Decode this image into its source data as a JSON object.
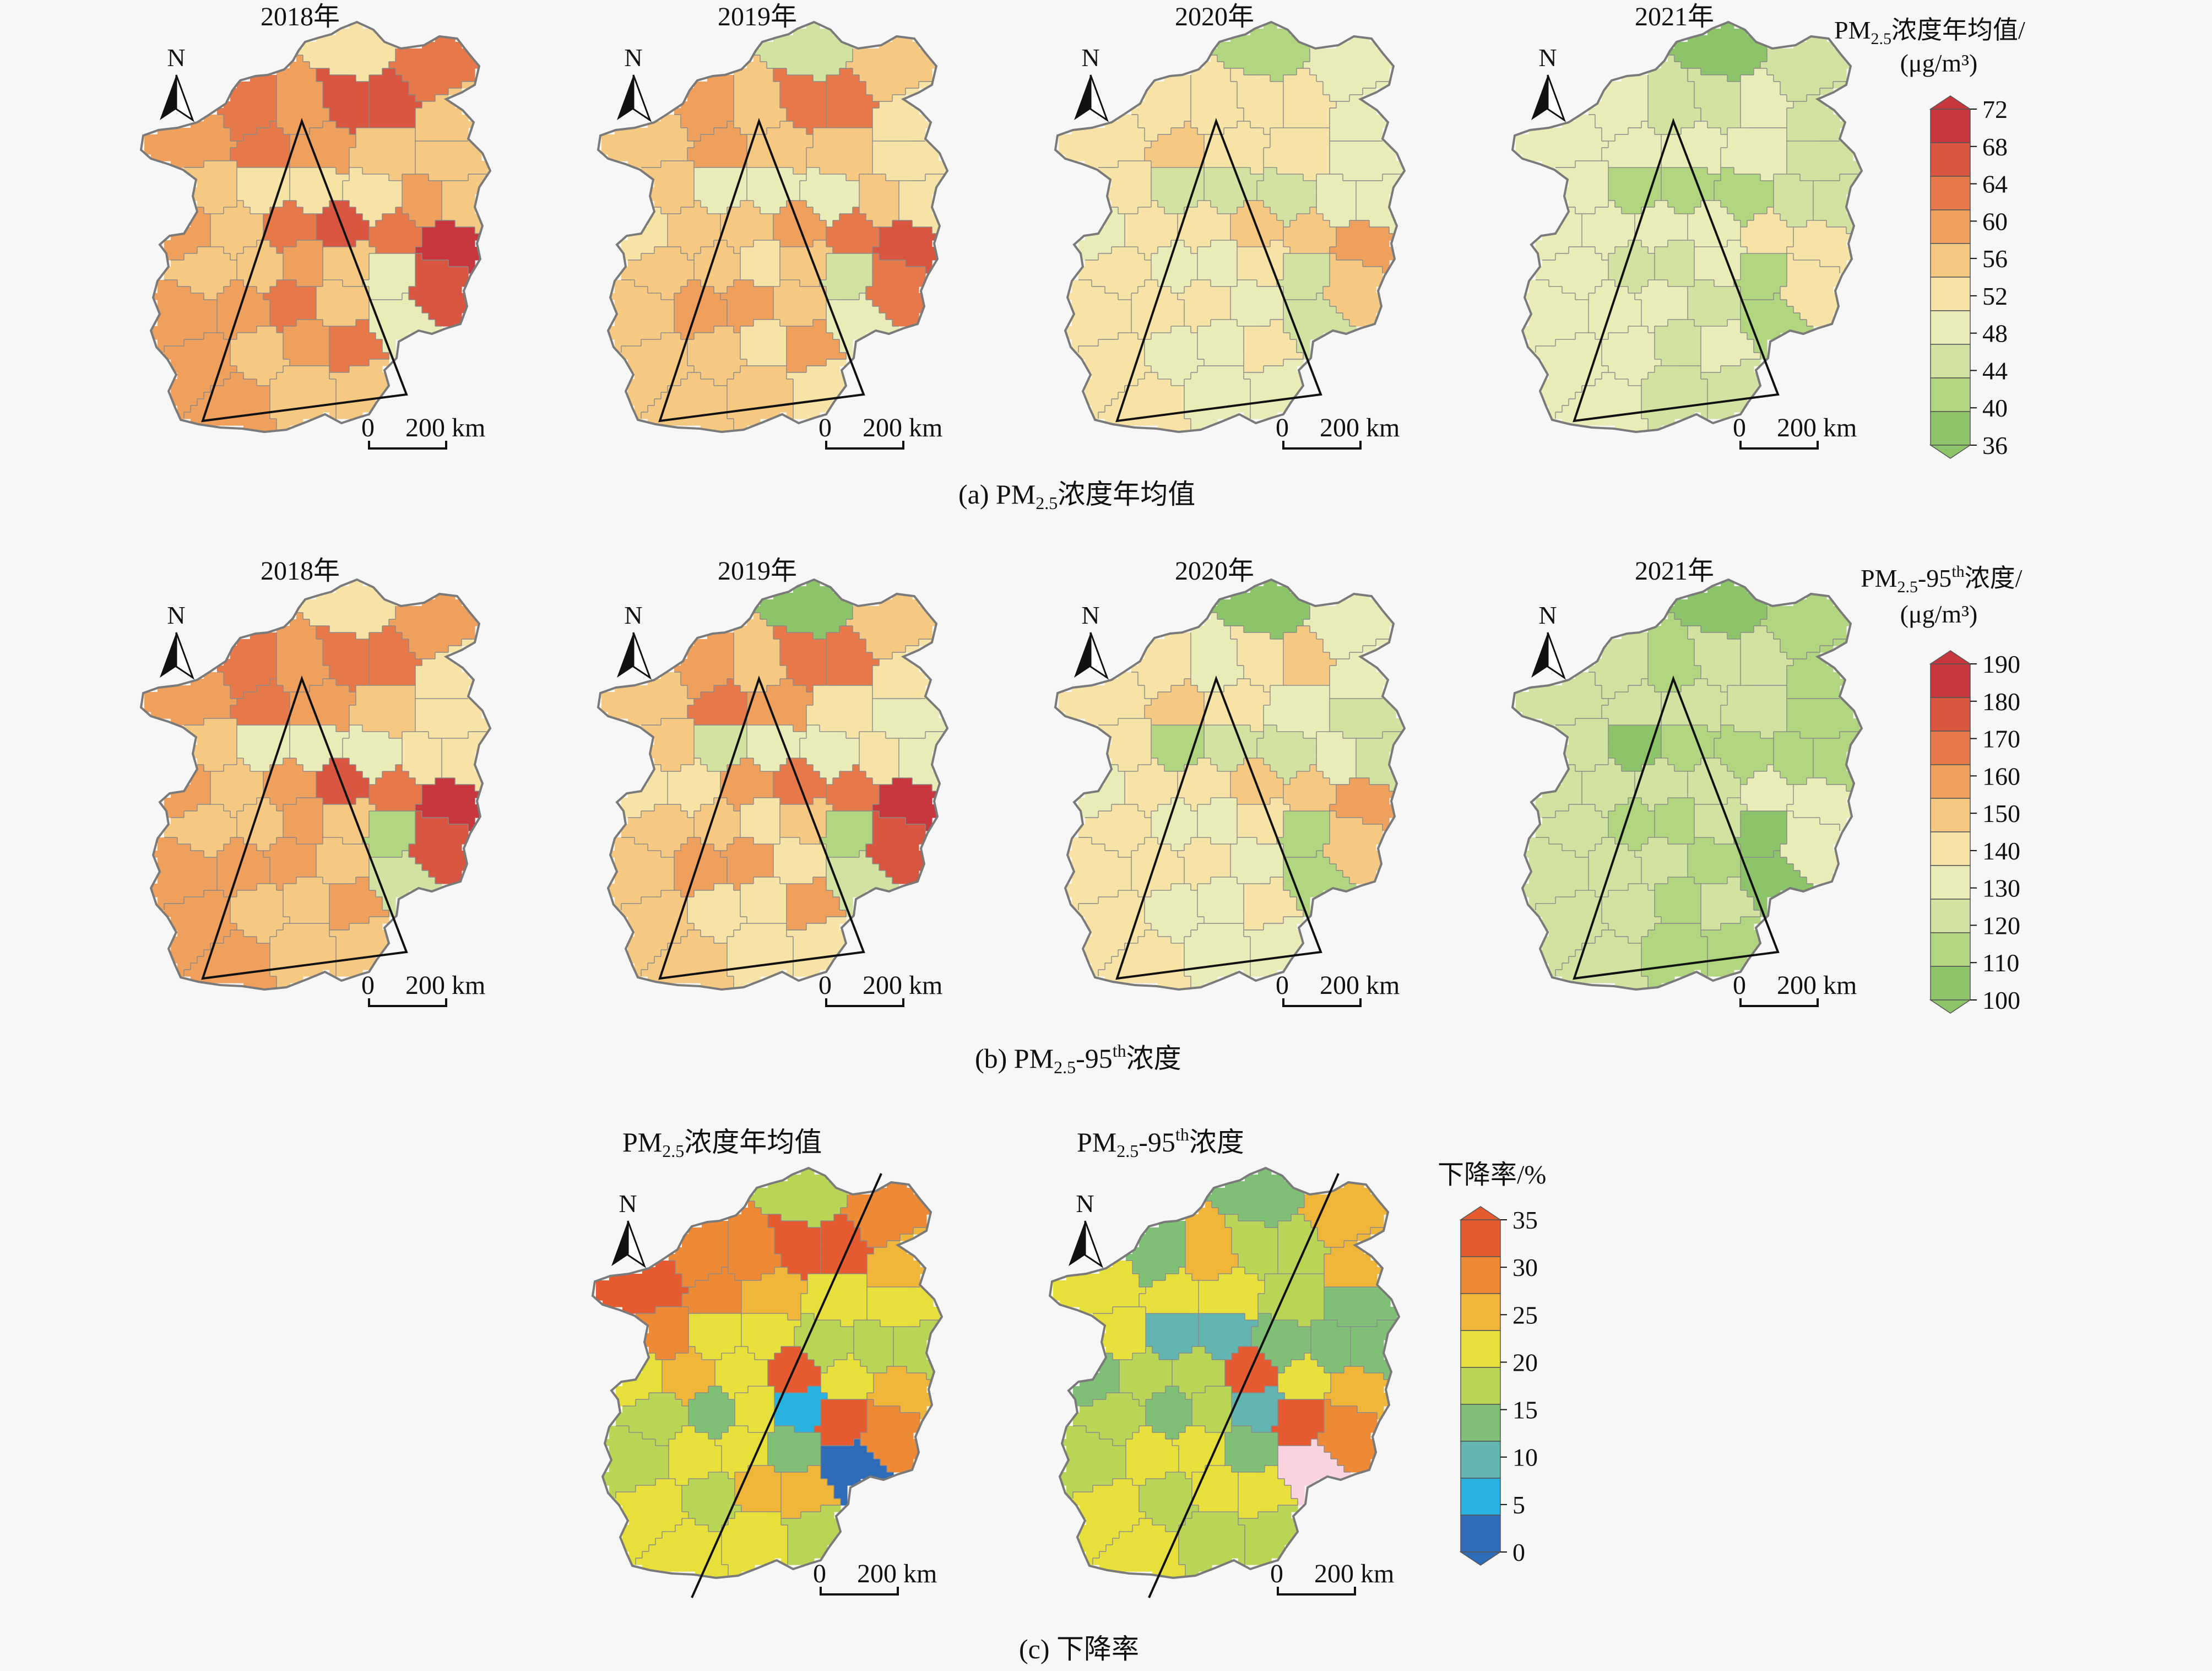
{
  "panels": {
    "a": {
      "caption_prefix": "(a) PM",
      "caption_sub": "2.5",
      "caption_suffix": "浓度年均值",
      "years": [
        "2018年",
        "2019年",
        "2020年",
        "2021年"
      ],
      "legend_title_prefix": "PM",
      "legend_title_sub": "2.5",
      "legend_title_suffix": "浓度年均值/",
      "legend_unit": "(μg/m³)",
      "legend_ticks": [
        "72",
        "68",
        "64",
        "60",
        "56",
        "52",
        "48",
        "44",
        "40",
        "36"
      ]
    },
    "b": {
      "caption_prefix": "(b) PM",
      "caption_sub": "2.5",
      "caption_mid": "-95",
      "caption_sup": "th",
      "caption_suffix": "浓度",
      "years": [
        "2018年",
        "2019年",
        "2020年",
        "2021年"
      ],
      "legend_title_prefix": "PM",
      "legend_title_sub": "2.5",
      "legend_title_mid": "-95",
      "legend_title_sup": "th",
      "legend_title_suffix": "浓度/",
      "legend_unit": "(μg/m³)",
      "legend_ticks": [
        "190",
        "180",
        "170",
        "160",
        "150",
        "140",
        "130",
        "120",
        "110",
        "100"
      ]
    },
    "c": {
      "caption": "(c) 下降率",
      "map1_title_prefix": "PM",
      "map1_title_sub": "2.5",
      "map1_title_suffix": "浓度年均值",
      "map2_title_prefix": "PM",
      "map2_title_sub": "2.5",
      "map2_title_mid": "-95",
      "map2_title_sup": "th",
      "map2_title_suffix": "浓度",
      "legend_title": "下降率/%",
      "legend_ticks": [
        "35",
        "30",
        "25",
        "20",
        "15",
        "10",
        "5",
        "0"
      ]
    }
  },
  "north_label": "N",
  "scale_bar": {
    "zero": "0",
    "distance": "200 km"
  },
  "colors": {
    "a_ramp": [
      "#c8373d",
      "#d8553f",
      "#e6784a",
      "#eea05c",
      "#f6c982",
      "#f7e3a6",
      "#eaecb8",
      "#d2e2a0",
      "#b2d57f",
      "#8dc46a"
    ],
    "b_ramp": [
      "#c8373d",
      "#d8553f",
      "#e6784a",
      "#eea05c",
      "#f6c982",
      "#f7e3a6",
      "#eaecb8",
      "#d2e2a0",
      "#b2d57f",
      "#8dc46a"
    ],
    "c_ramp": [
      "#e55a2e",
      "#ee8a35",
      "#f0b63a",
      "#e7df3b",
      "#b9d556",
      "#7fbf76",
      "#62b5b1",
      "#27b2df",
      "#2e6cb8"
    ],
    "c_special": "#f9d3dd",
    "region_border": "#8a8a8a",
    "map_outline": "#7a7a7a",
    "line": "#111111"
  },
  "maps": {
    "a": [
      {
        "year": "2018年",
        "region_classes": [
          5,
          2,
          4,
          1,
          1,
          3,
          2,
          3,
          2,
          3,
          4,
          4,
          4,
          3,
          5,
          5,
          5,
          4,
          3,
          4,
          2,
          1,
          2,
          0,
          1,
          6,
          4,
          3,
          4,
          4,
          3,
          3,
          2,
          4,
          6,
          3,
          4,
          3,
          2,
          3,
          4,
          4
        ]
      },
      {
        "year": "2019年",
        "region_classes": [
          7,
          4,
          5,
          2,
          2,
          4,
          3,
          4,
          3,
          4,
          4,
          5,
          5,
          4,
          6,
          6,
          6,
          4,
          5,
          4,
          4,
          3,
          2,
          1,
          2,
          7,
          4,
          5,
          4,
          4,
          4,
          3,
          3,
          4,
          6,
          4,
          4,
          5,
          3,
          4,
          4,
          5
        ]
      },
      {
        "year": "2020年",
        "region_classes": [
          8,
          6,
          6,
          5,
          5,
          5,
          5,
          5,
          4,
          5,
          5,
          6,
          6,
          6,
          7,
          7,
          7,
          5,
          6,
          5,
          5,
          4,
          4,
          3,
          4,
          7,
          5,
          6,
          6,
          5,
          5,
          5,
          5,
          6,
          7,
          5,
          6,
          6,
          5,
          5,
          6,
          6
        ]
      },
      {
        "year": "2021年",
        "region_classes": [
          9,
          7,
          7,
          6,
          7,
          7,
          6,
          6,
          6,
          6,
          6,
          7,
          7,
          7,
          8,
          8,
          8,
          6,
          6,
          6,
          6,
          6,
          5,
          5,
          5,
          8,
          6,
          7,
          7,
          6,
          6,
          6,
          6,
          7,
          8,
          6,
          6,
          7,
          6,
          6,
          7,
          7
        ]
      }
    ],
    "b": [
      {
        "year": "2018年",
        "region_classes": [
          5,
          3,
          5,
          2,
          2,
          3,
          2,
          3,
          2,
          3,
          4,
          5,
          5,
          5,
          6,
          6,
          6,
          4,
          3,
          4,
          3,
          1,
          2,
          0,
          1,
          8,
          4,
          3,
          4,
          4,
          3,
          3,
          3,
          4,
          7,
          3,
          4,
          4,
          3,
          3,
          4,
          4
        ]
      },
      {
        "year": "2019年",
        "region_classes": [
          9,
          4,
          5,
          2,
          2,
          4,
          3,
          4,
          2,
          3,
          5,
          6,
          6,
          5,
          6,
          6,
          7,
          4,
          5,
          5,
          3,
          2,
          2,
          0,
          1,
          8,
          4,
          5,
          4,
          4,
          4,
          3,
          3,
          5,
          7,
          4,
          5,
          5,
          3,
          4,
          5,
          5
        ]
      },
      {
        "year": "2020年",
        "region_classes": [
          9,
          6,
          6,
          4,
          5,
          6,
          5,
          5,
          4,
          5,
          6,
          7,
          7,
          6,
          7,
          7,
          8,
          5,
          6,
          5,
          5,
          4,
          4,
          3,
          4,
          8,
          5,
          6,
          6,
          5,
          5,
          5,
          5,
          6,
          8,
          5,
          6,
          6,
          5,
          5,
          6,
          6
        ]
      },
      {
        "year": "2021年",
        "region_classes": [
          9,
          8,
          8,
          7,
          7,
          8,
          7,
          7,
          7,
          7,
          7,
          8,
          8,
          8,
          8,
          8,
          9,
          7,
          7,
          7,
          7,
          7,
          6,
          6,
          6,
          9,
          7,
          8,
          8,
          7,
          7,
          7,
          7,
          8,
          9,
          7,
          7,
          8,
          7,
          7,
          8,
          8
        ]
      }
    ],
    "c": [
      {
        "title": "PM2.5浓度年均值",
        "region_classes": [
          4,
          1,
          2,
          0,
          0,
          1,
          1,
          0,
          1,
          2,
          3,
          3,
          4,
          4,
          4,
          3,
          3,
          1,
          3,
          2,
          3,
          0,
          3,
          2,
          1,
          0,
          7,
          3,
          5,
          4,
          4,
          3,
          3,
          5,
          8,
          3,
          4,
          2,
          2,
          3,
          3,
          4
        ]
      },
      {
        "title": "PM2.5-95th浓度",
        "region_classes": [
          5,
          2,
          2,
          4,
          4,
          2,
          5,
          3,
          3,
          3,
          4,
          5,
          5,
          5,
          5,
          6,
          6,
          3,
          5,
          4,
          4,
          0,
          3,
          2,
          1,
          0,
          6,
          4,
          5,
          4,
          4,
          3,
          3,
          5,
          -1,
          3,
          4,
          3,
          3,
          3,
          4,
          4
        ]
      }
    ]
  }
}
